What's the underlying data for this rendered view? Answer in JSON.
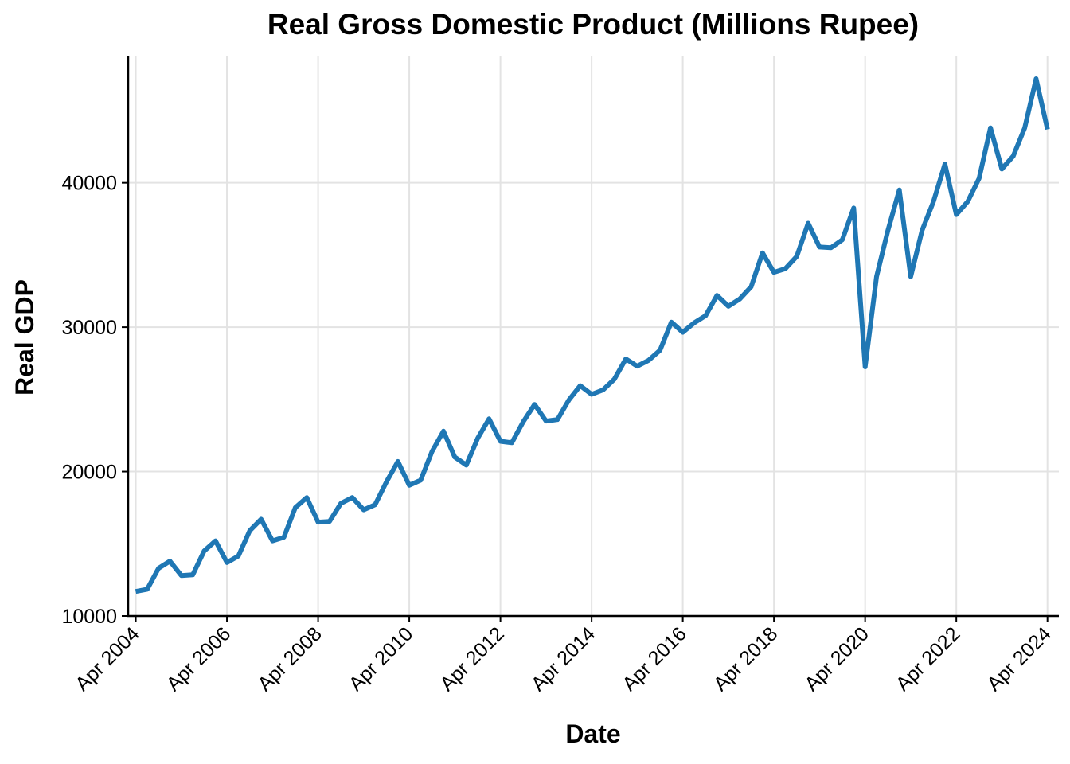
{
  "chart_data": {
    "type": "line",
    "title": "Real Gross Domestic Product (Millions Rupee)",
    "xlabel": "Date",
    "ylabel": "Real GDP",
    "ylim": [
      10000,
      48800
    ],
    "xlim": [
      "2004-02",
      "2024-07"
    ],
    "grid": true,
    "legend": "none",
    "line_color": "#1f77b4",
    "y_ticks": [
      10000,
      20000,
      30000,
      40000
    ],
    "x_tick_labels": [
      "Apr 2004",
      "Apr 2006",
      "Apr 2008",
      "Apr 2010",
      "Apr 2012",
      "Apr 2014",
      "Apr 2016",
      "Apr 2018",
      "Apr 2020",
      "Apr 2022",
      "Apr 2024"
    ],
    "x_tick_dates": [
      "2004-04",
      "2006-04",
      "2008-04",
      "2010-04",
      "2012-04",
      "2014-04",
      "2016-04",
      "2018-04",
      "2020-04",
      "2022-04",
      "2024-04"
    ],
    "series": [
      {
        "x": [
          "2004-04",
          "2004-07",
          "2004-10",
          "2005-01",
          "2005-04",
          "2005-07",
          "2005-10",
          "2006-01",
          "2006-04",
          "2006-07",
          "2006-10",
          "2007-01",
          "2007-04",
          "2007-07",
          "2007-10",
          "2008-01",
          "2008-04",
          "2008-07",
          "2008-10",
          "2009-01",
          "2009-04",
          "2009-07",
          "2009-10",
          "2010-01",
          "2010-04",
          "2010-07",
          "2010-10",
          "2011-01",
          "2011-04",
          "2011-07",
          "2011-10",
          "2012-01",
          "2012-04",
          "2012-07",
          "2012-10",
          "2013-01",
          "2013-04",
          "2013-07",
          "2013-10",
          "2014-01",
          "2014-04",
          "2014-07",
          "2014-10",
          "2015-01",
          "2015-04",
          "2015-07",
          "2015-10",
          "2016-01",
          "2016-04",
          "2016-07",
          "2016-10",
          "2017-01",
          "2017-04",
          "2017-07",
          "2017-10",
          "2018-01",
          "2018-04",
          "2018-07",
          "2018-10",
          "2019-01",
          "2019-04",
          "2019-07",
          "2019-10",
          "2020-01",
          "2020-04",
          "2020-07",
          "2020-10",
          "2021-01",
          "2021-04",
          "2021-07",
          "2021-10",
          "2022-01",
          "2022-04",
          "2022-07",
          "2022-10",
          "2023-01",
          "2023-04",
          "2023-07",
          "2023-10",
          "2024-01",
          "2024-04"
        ],
        "values": [
          11700,
          11850,
          13300,
          13800,
          12800,
          12850,
          14500,
          15200,
          13700,
          14150,
          15900,
          16700,
          15200,
          15450,
          17500,
          18200,
          16500,
          16550,
          17800,
          18200,
          17350,
          17700,
          19300,
          20700,
          19050,
          19400,
          21400,
          22800,
          21000,
          20450,
          22300,
          23650,
          22100,
          22000,
          23450,
          24650,
          23500,
          23600,
          24950,
          25950,
          25350,
          25650,
          26400,
          27800,
          27300,
          27700,
          28400,
          30350,
          29650,
          30300,
          30800,
          32200,
          31450,
          31950,
          32800,
          35150,
          33800,
          34050,
          34900,
          37200,
          35550,
          35500,
          36050,
          38250,
          27250,
          33500,
          36700,
          39500,
          33500,
          36700,
          38700,
          41300,
          37800,
          38700,
          40300,
          43800,
          40950,
          41850,
          43800,
          47200,
          43700
        ]
      }
    ]
  }
}
